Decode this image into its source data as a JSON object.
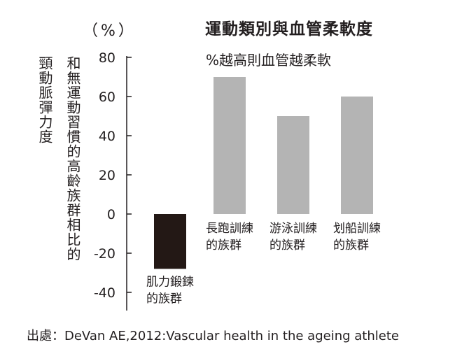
{
  "chart_data": {
    "type": "bar",
    "title": "運動類別與血管柔軟度",
    "unit_label": "（%）",
    "ylabel_lines": [
      "和無運動習慣的高齡族群相比的",
      "頸動脈彈力度"
    ],
    "annotation": "%越高則血管越柔軟",
    "categories": [
      {
        "lines": [
          "肌力鍛鍊",
          "的族群"
        ],
        "value": -28,
        "color": "#231815"
      },
      {
        "lines": [
          "長跑訓練",
          "的族群"
        ],
        "value": 70,
        "color": "#b4b4b4"
      },
      {
        "lines": [
          "游泳訓練",
          "的族群"
        ],
        "value": 50,
        "color": "#b4b4b4"
      },
      {
        "lines": [
          "划船訓練",
          "的族群"
        ],
        "value": 60,
        "color": "#b4b4b4"
      }
    ],
    "yticks": [
      80,
      60,
      40,
      20,
      0,
      -20,
      -40
    ],
    "ylim": [
      -50,
      80
    ],
    "grid": false
  },
  "source": "出處：DeVan AE,2012:Vascular health in the ageing athlete"
}
